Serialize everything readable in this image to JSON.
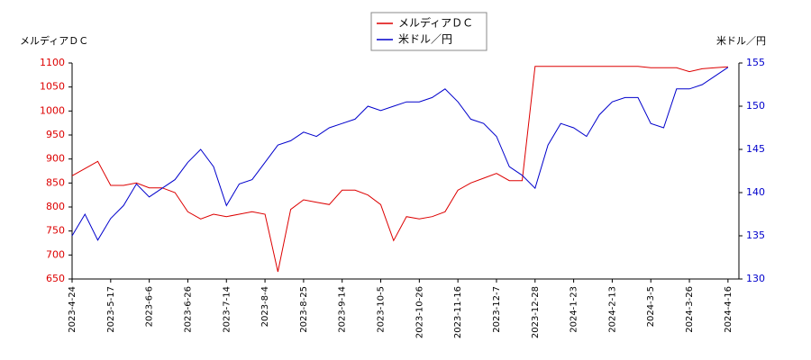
{
  "chart_data": {
    "type": "line",
    "ylabel": "メルディアＤＣ",
    "y2label": "米ドル／円",
    "categories": [
      "2023-4-24",
      null,
      null,
      "2023-5-17",
      null,
      null,
      "2023-6-6",
      null,
      null,
      "2023-6-26",
      null,
      null,
      "2023-7-14",
      null,
      null,
      "2023-8-4",
      null,
      null,
      "2023-8-25",
      null,
      null,
      "2023-9-14",
      null,
      null,
      "2023-10-5",
      null,
      null,
      "2023-10-26",
      null,
      null,
      "2023-11-16",
      null,
      null,
      "2023-12-7",
      null,
      null,
      "2023-12-28",
      null,
      null,
      "2024-1-23",
      null,
      null,
      "2024-2-13",
      null,
      null,
      "2024-3-5",
      null,
      null,
      "2024-3-26",
      null,
      null,
      "2024-4-16"
    ],
    "series": [
      {
        "name": "メルディアＤＣ",
        "color": "#dd0000",
        "axis": "y",
        "values": [
          865,
          880,
          895,
          845,
          845,
          850,
          840,
          840,
          830,
          790,
          775,
          785,
          780,
          785,
          790,
          785,
          665,
          795,
          815,
          810,
          805,
          835,
          835,
          825,
          805,
          730,
          780,
          775,
          780,
          790,
          835,
          850,
          860,
          870,
          855,
          855,
          1093,
          1093,
          1093,
          1093,
          1093,
          1093,
          1093,
          1093,
          1093,
          1090,
          1090,
          1090,
          1082,
          1088,
          1090,
          1092
        ]
      },
      {
        "name": "米ドル／円",
        "color": "#0000cc",
        "axis": "y2",
        "values": [
          135,
          137.5,
          134.5,
          137,
          138.5,
          141,
          139.5,
          140.5,
          141.5,
          143.5,
          145,
          143,
          138.5,
          141,
          141.5,
          143.5,
          145.5,
          146,
          147,
          146.5,
          147.5,
          148,
          148.5,
          150,
          149.5,
          150,
          150.5,
          150.5,
          151,
          152,
          150.5,
          148.5,
          148,
          146.5,
          143,
          142,
          140.5,
          145.5,
          148,
          147.5,
          146.5,
          149,
          150.5,
          151,
          151,
          148,
          147.5,
          152,
          152,
          152.5,
          153.5,
          154.5
        ]
      }
    ],
    "ylim": [
      650,
      1100
    ],
    "yticks": [
      650,
      700,
      750,
      800,
      850,
      900,
      950,
      1000,
      1050,
      1100
    ],
    "y2lim": [
      130,
      155
    ],
    "y2ticks": [
      130,
      135,
      140,
      145,
      150,
      155
    ],
    "grid": false
  }
}
